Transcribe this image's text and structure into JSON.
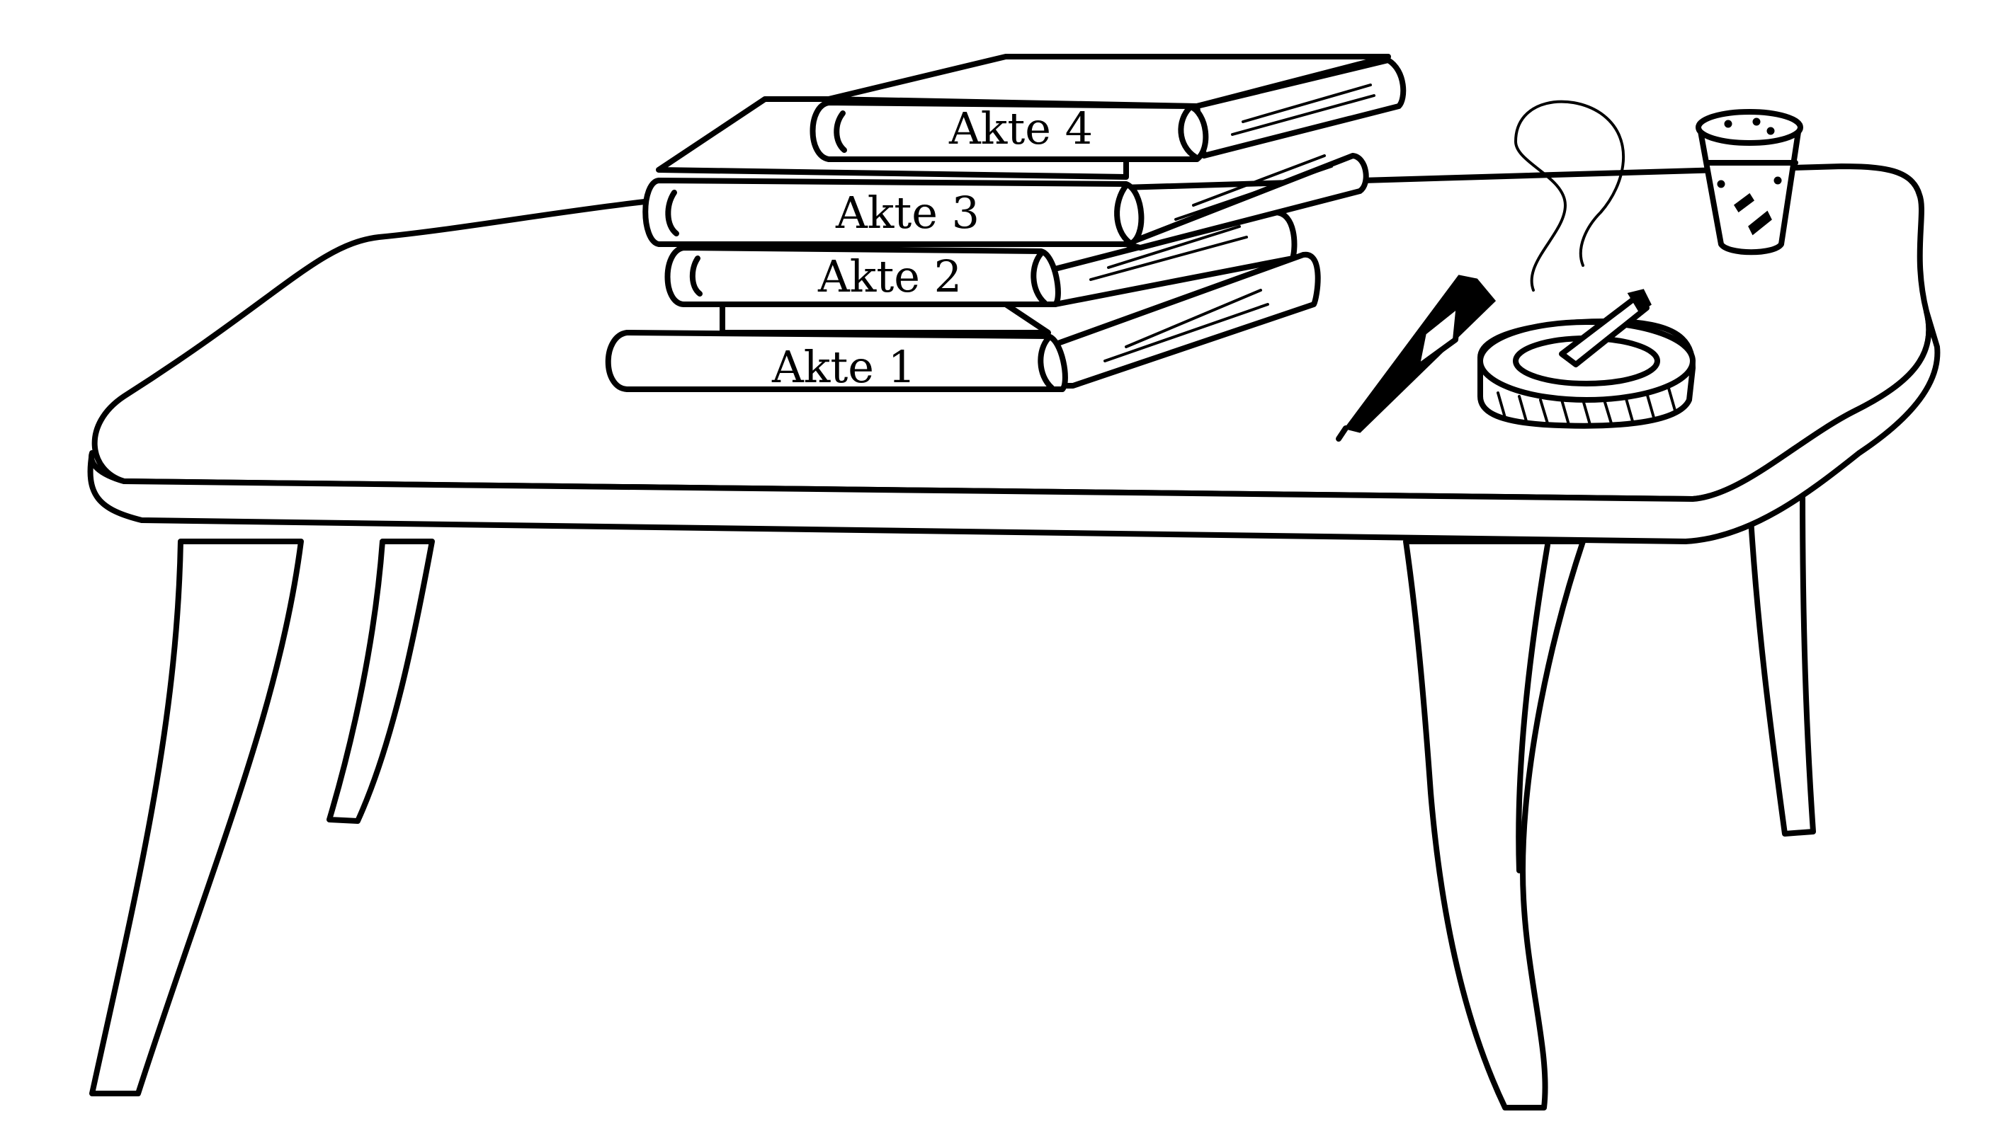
{
  "colors": {
    "ink": "#000000",
    "paper": "#ffffff"
  },
  "binders": [
    {
      "label": "Akte 4"
    },
    {
      "label": "Akte 3"
    },
    {
      "label": "Akte 2"
    },
    {
      "label": "Akte 1"
    }
  ]
}
